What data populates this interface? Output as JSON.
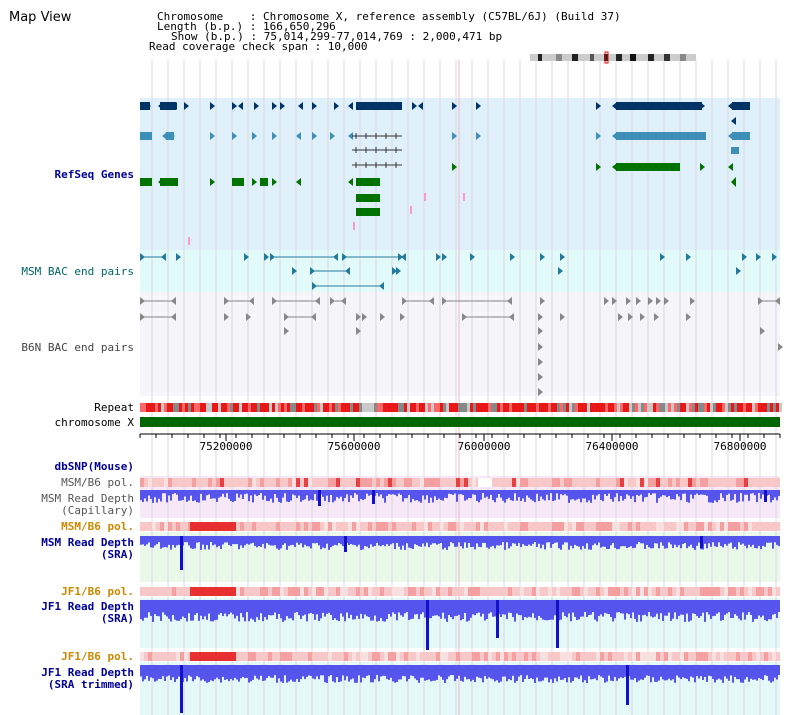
{
  "header": {
    "title": "Map View",
    "chromosome_line": "Chromosome    : Chromosome X, reference assembly (C57BL/6J) (Build 37)",
    "length_line": "Length (b.p.) : 166,650,296",
    "show_line": "Show (b.p.) : 75,014,299-77,014,769 : 2,000,471 bp",
    "coverage_line": "Read coverage check span : 10,000"
  },
  "tracks": {
    "refseq": "RefSeq Genes",
    "msm_bac": "MSM BAC end pairs",
    "b6n_bac": "B6N BAC end pairs",
    "repeat": "Repeat",
    "chromosome": "chromosome X",
    "dbsnp": "dbSNP(Mouse)",
    "msm_b6_pol_1": "MSM/B6 pol.",
    "msm_read_depth_cap": "MSM Read Depth\n(Capillary)",
    "msm_b6_pol_2": "MSM/B6 pol.",
    "msm_read_depth_sra": "MSM Read Depth\n(SRA)",
    "jf1_b6_pol_1": "JF1/B6 pol.",
    "jf1_read_depth_sra": "JF1 Read Depth\n(SRA)",
    "jf1_b6_pol_2": "JF1/B6 pol.",
    "jf1_read_depth_trim": "JF1 Read Depth\n(SRA trimmed)"
  },
  "axis": {
    "ticks": [
      "75200000",
      "75600000",
      "76000000",
      "76400000",
      "76800000"
    ]
  },
  "colors": {
    "refseq_bg": "#dff0fb",
    "msm_bac_bg": "#e3fafa",
    "b6n_bac_bg": "#f5f5fa",
    "gene_dark": "#003366",
    "gene_mid": "#3e8fb8",
    "gene_green": "#007200",
    "label_blue": "#000099",
    "label_teal": "#006666",
    "label_orange": "#cc8800",
    "depth_blue": "#4444ee",
    "chrom_green": "#006600"
  }
}
